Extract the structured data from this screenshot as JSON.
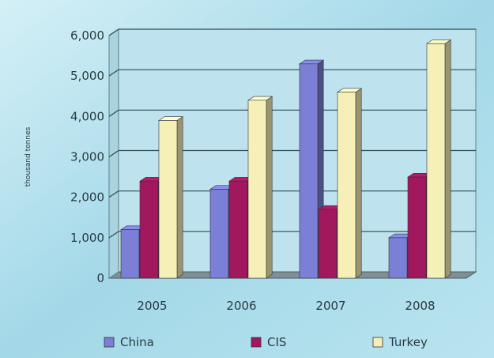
{
  "chart_data": {
    "type": "bar",
    "title": "",
    "xlabel": "",
    "ylabel": "thousand tonnes",
    "ylim": [
      0,
      6000
    ],
    "y_ticks": [
      {
        "value": 0,
        "label": "0"
      },
      {
        "value": 1000,
        "label": "1,000"
      },
      {
        "value": 2000,
        "label": "2,000"
      },
      {
        "value": 3000,
        "label": "3,000"
      },
      {
        "value": 4000,
        "label": "4,000"
      },
      {
        "value": 5000,
        "label": "5,000"
      },
      {
        "value": 6000,
        "label": "6,000"
      }
    ],
    "categories": [
      "2005",
      "2006",
      "2007",
      "2008"
    ],
    "series": [
      {
        "name": "China",
        "color": "#7b7fd6",
        "values": [
          1200,
          2200,
          5300,
          1000
        ]
      },
      {
        "name": "CIS",
        "color": "#a1185f",
        "values": [
          2400,
          2400,
          1700,
          2500
        ]
      },
      {
        "name": "Turkey",
        "color": "#f6f0b8",
        "values": [
          3900,
          4400,
          4600,
          5800
        ]
      }
    ],
    "grid": true,
    "legend_position": "bottom"
  }
}
